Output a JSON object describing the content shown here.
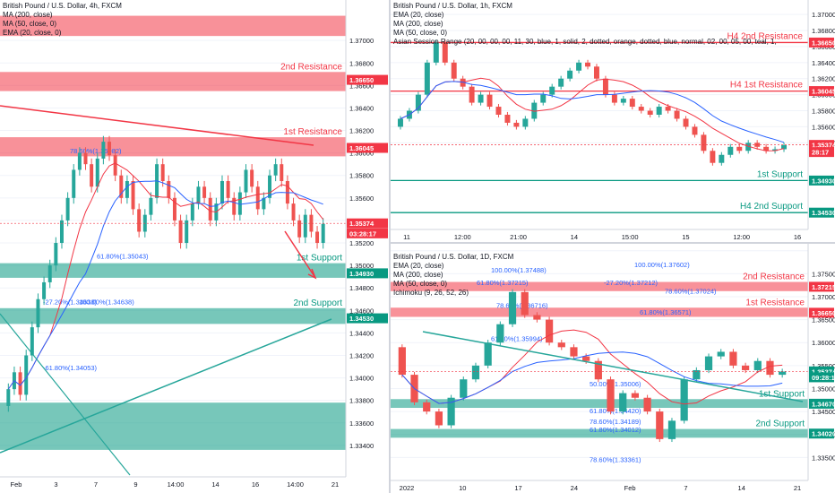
{
  "panels": [
    {
      "id": "p1",
      "header": [
        "British Pound / U.S. Dollar, 4h, FXCM",
        "MA (200, close)",
        "MA (50, close, 0)",
        "EMA (20, close, 0)"
      ],
      "price_axis": {
        "min": 1.3312,
        "max": 1.3736,
        "ticks": [
          "1.37000",
          "1.36800",
          "1.36600",
          "1.36400",
          "1.36200",
          "1.36000",
          "1.35800",
          "1.35600",
          "1.35400",
          "1.35200",
          "1.35000",
          "1.34800",
          "1.34600",
          "1.34400",
          "1.34200",
          "1.34000",
          "1.33800",
          "1.33600",
          "1.33400"
        ]
      },
      "time_axis": [
        "Feb",
        "3",
        "7",
        "9",
        "14:00",
        "14",
        "16",
        "14:00",
        "21"
      ],
      "price_tags": [
        {
          "text": "1.36650",
          "y": 1.3665,
          "color": "#f23645"
        },
        {
          "text": "1.36045",
          "y": 1.36045,
          "color": "#f23645"
        },
        {
          "text": "1.35374",
          "y": 1.35374,
          "color": "#f23645"
        },
        {
          "text": "03:28:17",
          "y": 1.35285,
          "color": "#f23645"
        },
        {
          "text": "1.34930",
          "y": 1.3493,
          "color": "#089981"
        },
        {
          "text": "1.34530",
          "y": 1.3453,
          "color": "#089981"
        }
      ],
      "zones": [
        {
          "label": "",
          "top": 1.3722,
          "bottom": 1.3704,
          "color": "#f23645"
        },
        {
          "label": "2nd Resistance",
          "top": 1.3672,
          "bottom": 1.3655,
          "color": "#f23645"
        },
        {
          "label": "1st Resistance",
          "top": 1.3614,
          "bottom": 1.3597,
          "color": "#f23645"
        },
        {
          "label": "1st Support",
          "top": 1.3502,
          "bottom": 1.3489,
          "color": "#089981"
        },
        {
          "label": "2nd Support",
          "top": 1.3462,
          "bottom": 1.3448,
          "color": "#089981"
        },
        {
          "label": "",
          "top": 1.3378,
          "bottom": 1.3336,
          "color": "#089981"
        }
      ],
      "fib_labels": [
        {
          "text": "78.60%(1.35982)",
          "y": 1.35982
        },
        {
          "text": "61.80%(1.35043)",
          "y": 1.35043
        },
        {
          "text": "-27.20%(1.34638)",
          "y": 1.34638
        },
        {
          "text": "100.00%(1.34638)",
          "y": 1.34638
        },
        {
          "text": "-61.80%(1.34053)",
          "y": 1.34053
        }
      ]
    },
    {
      "id": "p2",
      "header": [
        "British Pound / U.S. Dollar, 1h, FXCM",
        "EMA (20, close)",
        "MA (200, close)",
        "MA (50, close, 0)",
        "Asian Session Range (20, 00, 00, 00, 11, 30, blue, 1, solid, 2, dotted, orange, dotted, blue, normal, 02, 00, 05, 00, teal, 1, solid, 2, dotted, teal, dotted,"
      ],
      "price_axis": {
        "min": 1.3432,
        "max": 1.3718,
        "ticks": [
          "1.37000",
          "1.36800",
          "1.36600",
          "1.36400",
          "1.36200",
          "1.36000",
          "1.35800",
          "1.35600",
          "1.35400"
        ]
      },
      "time_axis": [
        "11",
        "12:00",
        "21:00",
        "14",
        "15:00",
        "15",
        "12:00",
        "16"
      ],
      "price_tags": [
        {
          "text": "1.36650",
          "y": 1.3665,
          "color": "#f23645"
        },
        {
          "text": "1.36045",
          "y": 1.36045,
          "color": "#f23645"
        },
        {
          "text": "1.35374",
          "y": 1.35374,
          "color": "#f23645"
        },
        {
          "text": "28:17",
          "y": 1.35285,
          "color": "#f23645"
        },
        {
          "text": "1.34930",
          "y": 1.3493,
          "color": "#089981"
        },
        {
          "text": "1.34530",
          "y": 1.3453,
          "color": "#089981"
        }
      ],
      "levels": [
        {
          "label": "H4 2nd Resistance",
          "y": 1.3665,
          "color": "#f23645"
        },
        {
          "label": "H4 1st Resistance",
          "y": 1.36045,
          "color": "#f23645"
        },
        {
          "label": "1st Support",
          "y": 1.3493,
          "color": "#089981"
        },
        {
          "label": "H4 2nd Support",
          "y": 1.3453,
          "color": "#089981"
        }
      ]
    },
    {
      "id": "p3",
      "header": [
        "British Pound / U.S. Dollar, 1D, FXCM",
        "EMA (20, close)",
        "MA (200, close)",
        "MA (50, close, 0)",
        "Ichimoku (9, 26, 52, 26)"
      ],
      "price_axis": {
        "min": 1.33,
        "max": 1.3815,
        "ticks": [
          "1.38000",
          "1.37500",
          "1.37000",
          "1.36500",
          "1.36000",
          "1.35500",
          "1.35000",
          "1.34500",
          "1.34000",
          "1.33500"
        ]
      },
      "time_axis": [
        "2022",
        "10",
        "17",
        "24",
        "Feb",
        "7",
        "14",
        "21"
      ],
      "price_tags": [
        {
          "text": "1.37215",
          "y": 1.37215,
          "color": "#f23645"
        },
        {
          "text": "1.36650",
          "y": 1.3665,
          "color": "#f23645"
        },
        {
          "text": "1.35374",
          "y": 1.35374,
          "color": "#089981"
        },
        {
          "text": "09:28:17",
          "y": 1.35245,
          "color": "#089981"
        },
        {
          "text": "1.34670",
          "y": 1.3467,
          "color": "#089981"
        },
        {
          "text": "1.34020",
          "y": 1.3402,
          "color": "#089981"
        }
      ],
      "zones": [
        {
          "label": "2nd Resistance",
          "top": 1.3732,
          "bottom": 1.3712,
          "color": "#f23645"
        },
        {
          "label": "1st Resistance",
          "top": 1.3676,
          "bottom": 1.3656,
          "color": "#f23645"
        },
        {
          "label": "1st Support",
          "top": 1.3477,
          "bottom": 1.3458,
          "color": "#089981"
        },
        {
          "label": "2nd Support",
          "top": 1.3412,
          "bottom": 1.3393,
          "color": "#089981"
        }
      ],
      "fib_labels": [
        {
          "text": "100.00%(1.37488)",
          "y": 1.37488
        },
        {
          "text": "61.80%(1.37215)",
          "y": 1.37215
        },
        {
          "text": "78.60%(1.36716)",
          "y": 1.36716
        },
        {
          "text": "61.80%(1.35994)",
          "y": 1.35994
        },
        {
          "text": "50.00%(1.35006)",
          "y": 1.35006
        },
        {
          "text": "61.80%(1.34420)",
          "y": 1.3442
        },
        {
          "text": "78.60%(1.34189)",
          "y": 1.34189
        },
        {
          "text": "61.80%(1.34012)",
          "y": 1.34012
        },
        {
          "text": "78.60%(1.33361)",
          "y": 1.33361
        },
        {
          "text": "100.00%(1.37602)",
          "y": 1.37602
        },
        {
          "text": "-27.20%(1.37212)",
          "y": 1.37212
        },
        {
          "text": "78.60%(1.37024)",
          "y": 1.37024
        },
        {
          "text": "61.80%(1.36571)",
          "y": 1.36571
        }
      ]
    }
  ],
  "chart_data": [
    {
      "type": "candlestick",
      "title": "British Pound / U.S. Dollar, 4h, FXCM",
      "ylim": [
        1.3312,
        1.3736
      ],
      "last_price": 1.35374,
      "resistance_zones": [
        [
          1.3655,
          1.3672
        ],
        [
          1.3597,
          1.3614
        ],
        [
          1.3704,
          1.3722
        ]
      ],
      "support_zones": [
        [
          1.3489,
          1.3502
        ],
        [
          1.3448,
          1.3462
        ],
        [
          1.3336,
          1.3378
        ]
      ],
      "closes": [
        1.339,
        1.3405,
        1.3385,
        1.342,
        1.3445,
        1.347,
        1.3485,
        1.35,
        1.352,
        1.354,
        1.356,
        1.3585,
        1.36,
        1.359,
        1.357,
        1.3595,
        1.361,
        1.3598,
        1.358,
        1.356,
        1.3575,
        1.355,
        1.353,
        1.3545,
        1.356,
        1.359,
        1.3575,
        1.356,
        1.354,
        1.352,
        1.354,
        1.3555,
        1.357,
        1.356,
        1.354,
        1.3555,
        1.3575,
        1.356,
        1.3545,
        1.3565,
        1.3585,
        1.357,
        1.355,
        1.356,
        1.358,
        1.359,
        1.3575,
        1.3555,
        1.354,
        1.3525,
        1.3545,
        1.353,
        1.352,
        1.3537
      ]
    },
    {
      "type": "candlestick",
      "title": "British Pound / U.S. Dollar, 1h, FXCM",
      "ylim": [
        1.3432,
        1.3718
      ],
      "last_price": 1.35374,
      "levels": {
        "H4 2nd Resistance": 1.3665,
        "H4 1st Resistance": 1.36045,
        "1st Support": 1.3493,
        "H4 2nd Support": 1.3453
      },
      "closes": [
        1.357,
        1.358,
        1.36,
        1.364,
        1.3665,
        1.364,
        1.362,
        1.361,
        1.359,
        1.36,
        1.3585,
        1.3575,
        1.3565,
        1.356,
        1.357,
        1.359,
        1.36,
        1.361,
        1.362,
        1.363,
        1.364,
        1.3635,
        1.362,
        1.36,
        1.359,
        1.3595,
        1.3585,
        1.358,
        1.3575,
        1.3585,
        1.358,
        1.357,
        1.356,
        1.355,
        1.353,
        1.3515,
        1.3525,
        1.3535,
        1.353,
        1.354,
        1.3535,
        1.353,
        1.3532,
        1.3537
      ]
    },
    {
      "type": "candlestick",
      "title": "British Pound / U.S. Dollar, 1D, FXCM",
      "ylim": [
        1.33,
        1.3815
      ],
      "last_price": 1.35374,
      "resistance_zones": [
        [
          1.3712,
          1.3732
        ],
        [
          1.3656,
          1.3676
        ]
      ],
      "support_zones": [
        [
          1.3458,
          1.3477
        ],
        [
          1.3393,
          1.3412
        ]
      ],
      "closes": [
        1.353,
        1.347,
        1.345,
        1.342,
        1.348,
        1.352,
        1.355,
        1.36,
        1.364,
        1.371,
        1.366,
        1.365,
        1.36,
        1.359,
        1.357,
        1.356,
        1.352,
        1.345,
        1.349,
        1.348,
        1.345,
        1.339,
        1.343,
        1.352,
        1.354,
        1.357,
        1.358,
        1.355,
        1.354,
        1.356,
        1.353,
        1.3537
      ]
    }
  ]
}
